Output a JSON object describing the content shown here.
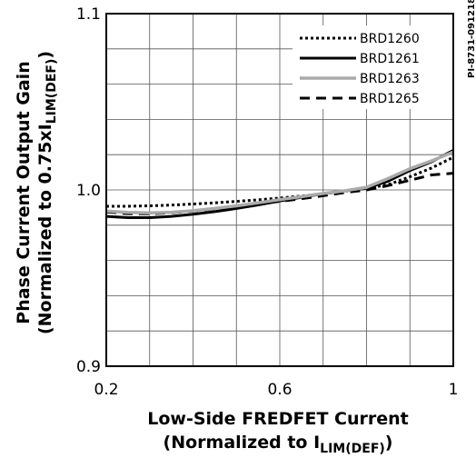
{
  "figure_code": "PI-8731-091218",
  "chart_data": {
    "type": "line",
    "title": "",
    "xlabel_line1": "Low-Side FREDFET Current",
    "xlabel_line2_prefix": "(Normalized to I",
    "xlabel_line2_sub": "LIM(DEF)",
    "xlabel_line2_suffix": ")",
    "ylabel_line1": "Phase Current Output Gain",
    "ylabel_line2_prefix": "(Normalized to 0.75xI",
    "ylabel_line2_sub": "LIM(DEF)",
    "ylabel_line2_suffix": ")",
    "xlim": [
      0.2,
      1.0
    ],
    "ylim": [
      0.9,
      1.1
    ],
    "x_ticks": [
      {
        "value": 0.2,
        "label": "0.2"
      },
      {
        "value": 0.6,
        "label": "0.6"
      },
      {
        "value": 1.0,
        "label": "1"
      }
    ],
    "y_ticks": [
      {
        "value": 0.9,
        "label": "0.9"
      },
      {
        "value": 1.0,
        "label": "1.0"
      },
      {
        "value": 1.1,
        "label": "1.1"
      }
    ],
    "grid": true,
    "legend_position": "top-right",
    "x": [
      0.2,
      0.25,
      0.3,
      0.35,
      0.4,
      0.45,
      0.5,
      0.55,
      0.6,
      0.65,
      0.7,
      0.75,
      0.8,
      0.85,
      0.9,
      0.95,
      1.0
    ],
    "series": [
      {
        "name": "BRD1260",
        "style": "dotted",
        "color": "#000000",
        "values": [
          0.9907,
          0.9907,
          0.991,
          0.9914,
          0.992,
          0.9927,
          0.9935,
          0.9944,
          0.9954,
          0.9965,
          0.9978,
          0.9993,
          1.001,
          1.003,
          1.0075,
          1.0125,
          1.0185
        ]
      },
      {
        "name": "BRD1261",
        "style": "solid",
        "color": "#000000",
        "values": [
          0.985,
          0.9843,
          0.9843,
          0.985,
          0.9862,
          0.9877,
          0.9895,
          0.9915,
          0.9937,
          0.9958,
          0.9978,
          0.9995,
          1.001,
          1.005,
          1.011,
          1.016,
          1.0225
        ]
      },
      {
        "name": "BRD1263",
        "style": "solid",
        "color": "#aaaaaa",
        "values": [
          0.988,
          0.9872,
          0.987,
          0.9873,
          0.9882,
          0.9895,
          0.991,
          0.9927,
          0.9945,
          0.9962,
          0.998,
          0.9995,
          1.0015,
          1.0065,
          1.012,
          1.0165,
          1.0215
        ]
      },
      {
        "name": "BRD1265",
        "style": "dashed",
        "color": "#000000",
        "values": [
          0.9875,
          0.9865,
          0.9865,
          0.987,
          0.988,
          0.9893,
          0.9907,
          0.9921,
          0.9935,
          0.995,
          0.9967,
          0.9985,
          1.0,
          1.0025,
          1.0055,
          1.0085,
          1.0095
        ]
      }
    ]
  }
}
